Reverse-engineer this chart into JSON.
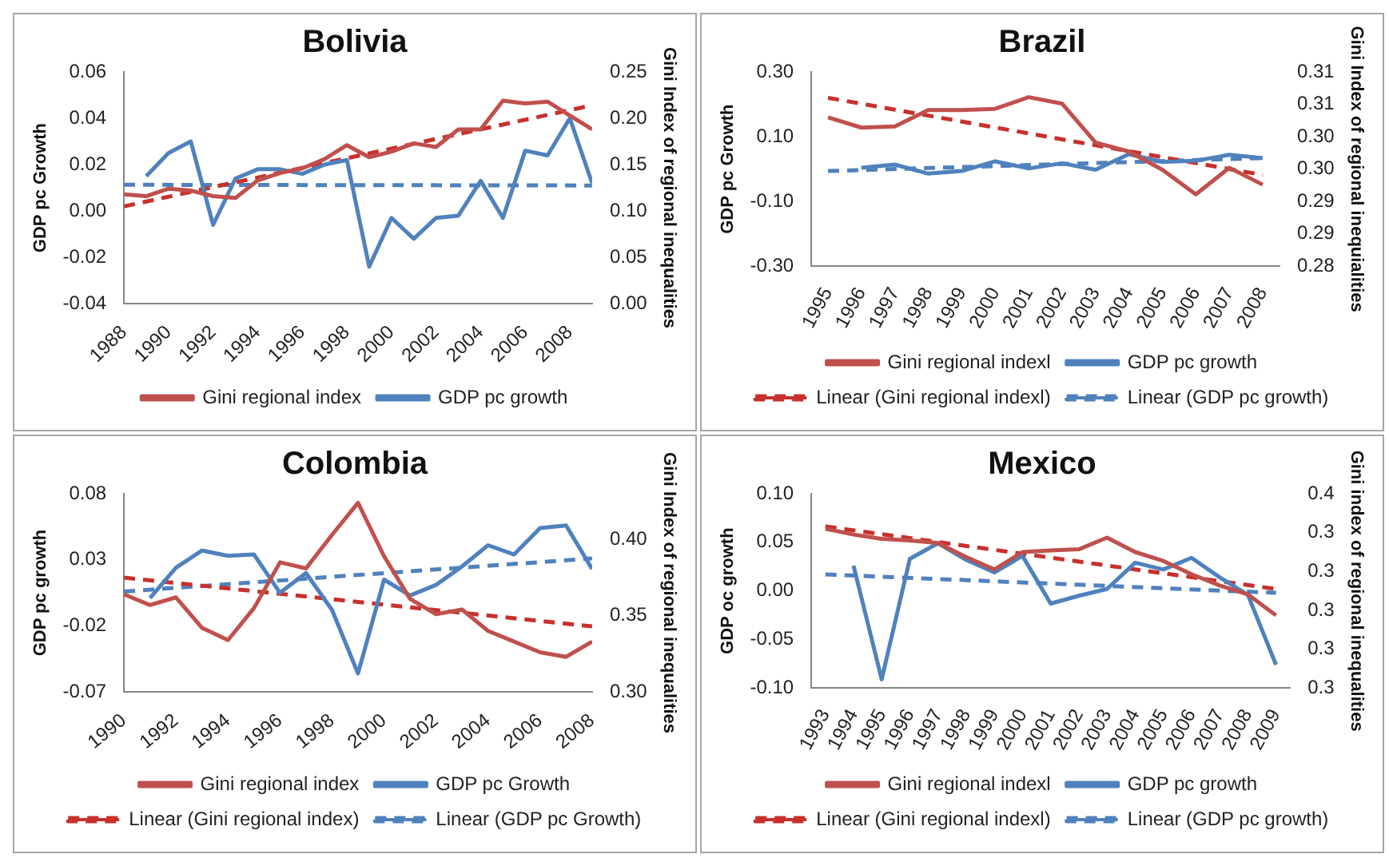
{
  "chart_data": [
    {
      "type": "line",
      "title": "Bolivia",
      "ylabel": "GDP pc Growth",
      "y2label": "Gini Index of regional inequalities",
      "legend": "bottom",
      "marker": "none",
      "x": [
        1988,
        1989,
        1990,
        1991,
        1992,
        1993,
        1994,
        1995,
        1996,
        1997,
        1998,
        1999,
        2000,
        2001,
        2002,
        2003,
        2004,
        2005,
        2006,
        2007,
        2008,
        2009
      ],
      "xlim": [
        1988,
        2009
      ],
      "xticks": [
        1988,
        1990,
        1992,
        1994,
        1996,
        1998,
        2000,
        2002,
        2004,
        2006,
        2008
      ],
      "ylim": [
        -0.04,
        0.06
      ],
      "yticks": [
        {
          "value": -0.04,
          "label": "-0.04"
        },
        {
          "value": -0.02,
          "label": "-0.02"
        },
        {
          "value": 0,
          "label": "0.00"
        },
        {
          "value": 0.02,
          "label": "0.02"
        },
        {
          "value": 0.04,
          "label": "0.04"
        },
        {
          "value": 0.06,
          "label": "0.06"
        }
      ],
      "y2lim": [
        0,
        0.25
      ],
      "y2ticks": [
        {
          "value": 0,
          "label": "0.00"
        },
        {
          "value": 0.05,
          "label": "0.05"
        },
        {
          "value": 0.1,
          "label": "0.10"
        },
        {
          "value": 0.15,
          "label": "0.15"
        },
        {
          "value": 0.2,
          "label": "0.20"
        },
        {
          "value": 0.25,
          "label": "0.25"
        }
      ],
      "series": [
        {
          "name": "Gini regional index",
          "color": "#c0504d",
          "axis": "y2",
          "values": [
            0.118,
            0.116,
            0.124,
            0.122,
            0.116,
            0.114,
            0.133,
            0.141,
            0.146,
            0.156,
            0.171,
            0.158,
            0.164,
            0.173,
            0.169,
            0.188,
            0.188,
            0.219,
            0.216,
            0.218,
            0.203,
            0.188
          ]
        },
        {
          "name": "GDP pc growth",
          "color": "#4f81bd",
          "values": [
            null,
            0.015,
            0.025,
            0.03,
            -0.006,
            0.014,
            0.018,
            0.018,
            0.016,
            0.02,
            0.022,
            -0.024,
            -0.003,
            -0.012,
            -0.003,
            -0.002,
            0.013,
            -0.003,
            0.026,
            0.024,
            0.04,
            0.012
          ]
        },
        {
          "type": "line",
          "color": "#c8302c",
          "axis": "y2",
          "line_style": "dashed",
          "x": [
            1988,
            2009
          ],
          "values": [
            0.105,
            0.214
          ]
        },
        {
          "type": "line",
          "color": "#4f81bd",
          "line_style": "dashed",
          "x": [
            1988,
            2009
          ],
          "values": [
            0.0113,
            0.011
          ]
        }
      ]
    },
    {
      "type": "line",
      "title": "Brazil",
      "ylabel": "GDP pc Growth",
      "y2label": "Gini Index of regional inequialities",
      "legend": "bottom",
      "marker": "none",
      "x": [
        1995,
        1996,
        1997,
        1998,
        1999,
        2000,
        2001,
        2002,
        2003,
        2004,
        2005,
        2006,
        2007,
        2008
      ],
      "xlim": [
        1994.5,
        2008.5
      ],
      "xticks": [
        1995,
        1996,
        1997,
        1998,
        1999,
        2000,
        2001,
        2002,
        2003,
        2004,
        2005,
        2006,
        2007,
        2008
      ],
      "ylim": [
        -0.3,
        0.3
      ],
      "yticks": [
        {
          "value": -0.3,
          "label": "-0.30"
        },
        {
          "value": -0.1,
          "label": "-0.10"
        },
        {
          "value": 0.1,
          "label": "0.10"
        },
        {
          "value": 0.3,
          "label": "0.30"
        }
      ],
      "y2lim": [
        0.28,
        0.31
      ],
      "y2ticks": [
        {
          "value": 0.28,
          "label": "0.28"
        },
        {
          "value": 0.285,
          "label": "0.29"
        },
        {
          "value": 0.29,
          "label": "0.29"
        },
        {
          "value": 0.295,
          "label": "0.30"
        },
        {
          "value": 0.3,
          "label": "0.30"
        },
        {
          "value": 0.305,
          "label": "0.31"
        },
        {
          "value": 0.31,
          "label": "0.31"
        }
      ],
      "series": [
        {
          "name": "Gini regional indexl",
          "color": "#c0504d",
          "axis": "y2",
          "values": [
            0.303,
            0.3014,
            0.3016,
            0.3041,
            0.3041,
            0.3043,
            0.3061,
            0.3051,
            0.2991,
            0.2977,
            0.2949,
            0.2911,
            0.2952,
            0.2926
          ]
        },
        {
          "name": "GDP pc growth",
          "color": "#4f81bd",
          "values": [
            null,
            0.004,
            0.014,
            -0.014,
            -0.006,
            0.024,
            0.002,
            0.018,
            -0.002,
            0.046,
            0.022,
            0.026,
            0.044,
            0.034
          ]
        },
        {
          "name": "Linear (Gini regional indexl)",
          "type": "line",
          "color": "#c8302c",
          "axis": "y2",
          "line_style": "dashed",
          "x": [
            1995,
            2008
          ],
          "values": [
            0.306,
            0.2941
          ]
        },
        {
          "name": "Linear (GDP pc growth)",
          "type": "line",
          "color": "#4f81bd",
          "line_style": "dashed",
          "x": [
            1995,
            2008
          ],
          "values": [
            -0.006,
            0.034
          ]
        }
      ]
    },
    {
      "type": "line",
      "title": "Colombia",
      "ylabel": "GDP pc growth",
      "y2label": "Gini Index of regional inequalities",
      "legend": "bottom",
      "marker": "none",
      "x": [
        1990,
        1991,
        1992,
        1993,
        1994,
        1995,
        1996,
        1997,
        1998,
        1999,
        2000,
        2001,
        2002,
        2003,
        2004,
        2005,
        2006,
        2007,
        2008
      ],
      "xlim": [
        1990,
        2008
      ],
      "xticks": [
        1990,
        1992,
        1994,
        1996,
        1998,
        2000,
        2002,
        2004,
        2006,
        2008
      ],
      "ylim": [
        -0.07,
        0.08
      ],
      "yticks": [
        {
          "value": -0.07,
          "label": "-0.07"
        },
        {
          "value": -0.02,
          "label": "-0.02"
        },
        {
          "value": 0.03,
          "label": "0.03"
        },
        {
          "value": 0.08,
          "label": "0.08"
        }
      ],
      "y2lim": [
        0.3,
        0.43
      ],
      "y2ticks": [
        {
          "value": 0.3,
          "label": "0.30"
        },
        {
          "value": 0.35,
          "label": "0.35"
        },
        {
          "value": 0.4,
          "label": "0.40"
        }
      ],
      "series": [
        {
          "name": "Gini regional index",
          "color": "#c0504d",
          "axis": "y2",
          "values": [
            0.364,
            0.357,
            0.362,
            0.342,
            0.334,
            0.355,
            0.385,
            0.381,
            0.403,
            0.424,
            0.389,
            0.361,
            0.351,
            0.354,
            0.34,
            0.333,
            0.326,
            0.323,
            0.333
          ]
        },
        {
          "name": "GDP pc Growth",
          "color": "#4f81bd",
          "values": [
            null,
            0.001,
            0.024,
            0.037,
            0.033,
            0.034,
            0.005,
            0.02,
            -0.008,
            -0.056,
            0.015,
            0.003,
            0.011,
            0.025,
            0.041,
            0.034,
            0.054,
            0.056,
            0.023
          ]
        },
        {
          "name": "Linear (Gini regional index)",
          "type": "line",
          "color": "#c8302c",
          "axis": "y2",
          "line_style": "dashed",
          "x": [
            1990,
            2008
          ],
          "values": [
            0.375,
            0.343
          ]
        },
        {
          "name": "Linear (GDP pc Growth)",
          "type": "line",
          "color": "#4f81bd",
          "line_style": "dashed",
          "x": [
            1990,
            2008
          ],
          "values": [
            0.006,
            0.031
          ]
        }
      ]
    },
    {
      "type": "line",
      "title": "Mexico",
      "ylabel": "GDP oc growth",
      "y2label": "Gini index of regional inequalities",
      "legend": "bottom",
      "marker": "none",
      "x": [
        1993,
        1994,
        1995,
        1996,
        1997,
        1998,
        1999,
        2000,
        2001,
        2002,
        2003,
        2004,
        2005,
        2006,
        2007,
        2008,
        2009
      ],
      "xlim": [
        1992.5,
        2009.5
      ],
      "xticks": [
        1993,
        1994,
        1995,
        1996,
        1997,
        1998,
        1999,
        2000,
        2001,
        2002,
        2003,
        2004,
        2005,
        2006,
        2007,
        2008,
        2009
      ],
      "ylim": [
        -0.1,
        0.1
      ],
      "yticks": [
        {
          "value": -0.1,
          "label": "-0.10"
        },
        {
          "value": -0.05,
          "label": "-0.05"
        },
        {
          "value": 0,
          "label": "0.00"
        },
        {
          "value": 0.05,
          "label": "0.05"
        },
        {
          "value": 0.1,
          "label": "0.10"
        }
      ],
      "y2lim": [
        0.3,
        0.35
      ],
      "y2ticks": [
        {
          "value": 0.3,
          "label": "0.3"
        },
        {
          "value": 0.31,
          "label": "0.3"
        },
        {
          "value": 0.32,
          "label": "0.3"
        },
        {
          "value": 0.33,
          "label": "0.3"
        },
        {
          "value": 0.34,
          "label": "0.3"
        },
        {
          "value": 0.35,
          "label": "0.4"
        }
      ],
      "series": [
        {
          "name": "Gini regional indexl",
          "color": "#c0504d",
          "axis": "y2",
          "values": [
            0.341,
            0.3395,
            0.3384,
            0.338,
            0.3373,
            0.3337,
            0.3305,
            0.335,
            0.3354,
            0.3357,
            0.3387,
            0.335,
            0.3327,
            0.3293,
            0.3264,
            0.3241,
            0.3187
          ]
        },
        {
          "name": "GDP pc growth",
          "color": "#4f81bd",
          "values": [
            null,
            0.026,
            -0.091,
            0.033,
            0.049,
            0.032,
            0.019,
            0.036,
            -0.013,
            -0.005,
            0.002,
            0.029,
            0.022,
            0.034,
            0.014,
            -0.004,
            -0.076
          ]
        },
        {
          "name": "Linear (Gini regional indexl)",
          "type": "line",
          "color": "#c8302c",
          "axis": "y2",
          "line_style": "dashed",
          "x": [
            1993,
            2009
          ],
          "values": [
            0.3416,
            0.3255
          ]
        },
        {
          "name": "Linear (GDP pc growth)",
          "type": "line",
          "color": "#4f81bd",
          "line_style": "dashed",
          "x": [
            1993,
            2009
          ],
          "values": [
            0.017,
            -0.002
          ]
        }
      ]
    }
  ]
}
